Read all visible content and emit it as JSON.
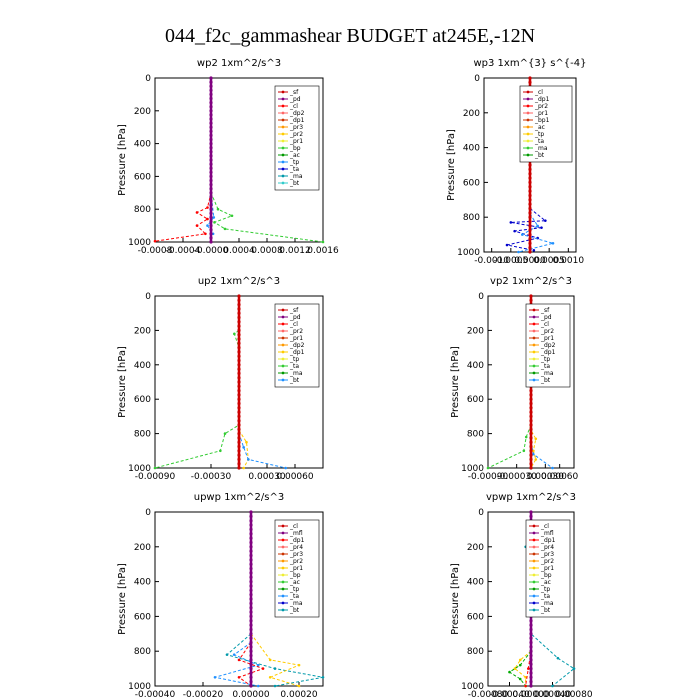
{
  "title": "044_f2c_gammashear  BUDGET at245E,-12N",
  "chart_data": [
    {
      "type": "line",
      "title": "wp2   1xm^2/s^3",
      "ylabel": "Pressure [hPa]",
      "xlim": [
        -0.0008,
        0.0016
      ],
      "ylim": [
        1000,
        0
      ],
      "xticks": [
        "-0.0008",
        "-0.0004",
        "-0.0000",
        "0.0004",
        "0.0008",
        "0.0012",
        "0.0016"
      ],
      "xtick_values": [
        -0.0008,
        -0.0004,
        0,
        0.0004,
        0.0008,
        0.0012,
        0.0016
      ],
      "yticks": [
        "0",
        "200",
        "400",
        "600",
        "800",
        "1000"
      ],
      "ytick_values": [
        0,
        200,
        400,
        600,
        800,
        1000
      ],
      "legend": [
        "_sf",
        "_pd",
        "_cl",
        "_dp2",
        "_dp1",
        "_pr3",
        "_pr2",
        "_pr1",
        "_bp",
        "_ac",
        "_tp",
        "_ta",
        "_ma",
        "_bt"
      ],
      "series": [
        {
          "name": "_dp1",
          "color": "#ff0000",
          "points": [
            [
              0,
              700
            ],
            [
              -5e-05,
              790
            ],
            [
              -0.0002,
              820
            ],
            [
              -5e-05,
              860
            ],
            [
              -0.0002,
              900
            ],
            [
              -8e-05,
              950
            ],
            [
              -0.0008,
              995
            ]
          ]
        },
        {
          "name": "_ac",
          "color": "#33cc33",
          "points": [
            [
              0,
              700
            ],
            [
              0.0001,
              800
            ],
            [
              0.0003,
              840
            ],
            [
              5e-05,
              880
            ],
            [
              0.0002,
              920
            ],
            [
              0.0016,
              1000
            ]
          ]
        },
        {
          "name": "_tp",
          "color": "#1e90ff",
          "points": [
            [
              0,
              700
            ],
            [
              4e-05,
              850
            ],
            [
              -5e-05,
              900
            ],
            [
              3e-05,
              950
            ]
          ]
        },
        {
          "name": "_pd",
          "color": "#800080",
          "points": [
            [
              0,
              0
            ],
            [
              0,
              1000
            ]
          ]
        }
      ]
    },
    {
      "type": "line",
      "title": "wp3   1xm^{3} s^{-4}",
      "ylabel": "Pressure [hPa]",
      "xlim": [
        -0.0012,
        0.0012
      ],
      "ylim": [
        1000,
        0
      ],
      "xticks": [
        "-0.0010",
        "-0.0005",
        "0.0000",
        "0.0005",
        "0.0010"
      ],
      "xtick_values": [
        -0.001,
        -0.0005,
        0,
        0.0005,
        0.001
      ],
      "yticks": [
        "0",
        "200",
        "400",
        "600",
        "800",
        "1000"
      ],
      "ytick_values": [
        0,
        200,
        400,
        600,
        800,
        1000
      ],
      "legend": [
        "_cl",
        "_dp1",
        "_pr2",
        "_pr1",
        "_bp1",
        "_ac",
        "_tp",
        "_ta",
        "_ma",
        "_bt"
      ],
      "series": [
        {
          "name": "_ta",
          "color": "#0000cc",
          "points": [
            [
              0,
              750
            ],
            [
              0.0004,
              820
            ],
            [
              -0.0005,
              830
            ],
            [
              0.0003,
              860
            ],
            [
              -0.0004,
              880
            ],
            [
              0.0002,
              920
            ],
            [
              -0.0006,
              960
            ],
            [
              0.0001,
              990
            ]
          ]
        },
        {
          "name": "_tp",
          "color": "#1e90ff",
          "points": [
            [
              0,
              780
            ],
            [
              0.0002,
              850
            ],
            [
              -0.0002,
              900
            ],
            [
              0.0006,
              950
            ],
            [
              -0.0003,
              1000
            ]
          ]
        },
        {
          "name": "_cl",
          "color": "#cc0000",
          "points": [
            [
              0,
              0
            ],
            [
              0,
              1000
            ]
          ]
        }
      ]
    },
    {
      "type": "line",
      "title": "up2   1xm^2/s^3",
      "ylabel": "Pressure [hPa]",
      "xlim": [
        -0.0009,
        0.0009
      ],
      "ylim": [
        1000,
        0
      ],
      "xticks": [
        "-0.00090",
        "-0.00030",
        "0.00030",
        "0.00060"
      ],
      "xtick_values": [
        -0.0009,
        -0.0003,
        0.0003,
        0.0006
      ],
      "yticks": [
        "0",
        "200",
        "400",
        "600",
        "800",
        "1000"
      ],
      "ytick_values": [
        0,
        200,
        400,
        600,
        800,
        1000
      ],
      "legend": [
        "_sf",
        "_pd",
        "_cl",
        "_pr2",
        "_pr1",
        "_dp2",
        "_dp1",
        "_tp",
        "_ta",
        "_ma",
        "_bt"
      ],
      "series": [
        {
          "name": "_dp1",
          "color": "#33cc33",
          "points": [
            [
              0,
              200
            ],
            [
              -5e-05,
              220
            ],
            [
              0,
              300
            ],
            [
              0,
              750
            ],
            [
              -0.00015,
              800
            ],
            [
              -0.0002,
              900
            ],
            [
              -0.0009,
              1000
            ]
          ]
        },
        {
          "name": "_pr1",
          "color": "#ffcc00",
          "points": [
            [
              0,
              780
            ],
            [
              8e-05,
              850
            ],
            [
              0.0001,
              950
            ],
            [
              5e-05,
              1000
            ]
          ]
        },
        {
          "name": "_tp",
          "color": "#1e90ff",
          "points": [
            [
              0,
              800
            ],
            [
              5e-05,
              880
            ],
            [
              0.0001,
              950
            ],
            [
              0.0005,
              1000
            ]
          ]
        },
        {
          "name": "_cl",
          "color": "#cc0000",
          "points": [
            [
              0,
              0
            ],
            [
              0,
              1000
            ]
          ]
        }
      ]
    },
    {
      "type": "line",
      "title": "vp2   1xm^2/s^3",
      "ylabel": "Pressure [hPa]",
      "xlim": [
        -0.0009,
        0.0009
      ],
      "ylim": [
        1000,
        0
      ],
      "xticks": [
        "-0.00090",
        "-0.00030",
        "0.00030",
        "0.00060"
      ],
      "xtick_values": [
        -0.0009,
        -0.0003,
        0.0003,
        0.0006
      ],
      "yticks": [
        "0",
        "200",
        "400",
        "600",
        "800",
        "1000"
      ],
      "ytick_values": [
        0,
        200,
        400,
        600,
        800,
        1000
      ],
      "legend": [
        "_sf",
        "_pd",
        "_cl",
        "_pr2",
        "_pr1",
        "_dp2",
        "_dp1",
        "_tp",
        "_ta",
        "_ma",
        "_bt"
      ],
      "series": [
        {
          "name": "_pr1",
          "color": "#ffcc00",
          "points": [
            [
              0,
              150
            ],
            [
              3e-05,
              200
            ],
            [
              0,
              300
            ],
            [
              0,
              780
            ],
            [
              0.0001,
              830
            ],
            [
              5e-05,
              900
            ],
            [
              0.0001,
              950
            ],
            [
              0,
              1000
            ]
          ]
        },
        {
          "name": "_dp1",
          "color": "#33cc33",
          "points": [
            [
              0,
              750
            ],
            [
              -0.0001,
              820
            ],
            [
              -0.00015,
              900
            ],
            [
              -0.0009,
              1000
            ]
          ]
        },
        {
          "name": "_tp",
          "color": "#1e90ff",
          "points": [
            [
              0,
              850
            ],
            [
              5e-05,
              920
            ],
            [
              0.00045,
              1000
            ]
          ]
        },
        {
          "name": "_cl",
          "color": "#cc0000",
          "points": [
            [
              0,
              0
            ],
            [
              0,
              1000
            ]
          ]
        }
      ]
    },
    {
      "type": "line",
      "title": "upwp   1xm^2/s^3",
      "ylabel": "Pressure [hPa]",
      "xlim": [
        -0.0004,
        0.0003
      ],
      "ylim": [
        1000,
        0
      ],
      "xticks": [
        "-0.00040",
        "-0.00020",
        "0.00000",
        "0.00020"
      ],
      "xtick_values": [
        -0.0004,
        -0.0002,
        0,
        0.0002
      ],
      "yticks": [
        "0",
        "200",
        "400",
        "600",
        "800",
        "1000"
      ],
      "ytick_values": [
        0,
        200,
        400,
        600,
        800,
        1000
      ],
      "legend": [
        "_cl",
        "_mfl",
        "_dp1",
        "_pr4",
        "_pr3",
        "_pr2",
        "_pr1",
        "_bp",
        "_ac",
        "_tp",
        "_ta",
        "_ma",
        "_bt"
      ],
      "series": [
        {
          "name": "_tp",
          "color": "#1e90ff",
          "points": [
            [
              0,
              750
            ],
            [
              -7e-05,
              820
            ],
            [
              3e-05,
              880
            ],
            [
              -0.00015,
              950
            ],
            [
              3e-05,
              1000
            ]
          ]
        },
        {
          "name": "_ac",
          "color": "#0099aa",
          "points": [
            [
              0,
              700
            ],
            [
              -0.0001,
              820
            ],
            [
              0.0001,
              900
            ],
            [
              0.0003,
              950
            ],
            [
              0.0001,
              1000
            ]
          ]
        },
        {
          "name": "_pr1",
          "color": "#ffcc00",
          "points": [
            [
              0,
              700
            ],
            [
              8e-05,
              850
            ],
            [
              0.0002,
              880
            ],
            [
              8e-05,
              950
            ],
            [
              0.0002,
              1000
            ]
          ]
        },
        {
          "name": "_pr3",
          "color": "#ff0000",
          "points": [
            [
              0,
              750
            ],
            [
              -5e-05,
              850
            ],
            [
              5e-05,
              900
            ],
            [
              -5e-05,
              950
            ],
            [
              0,
              1000
            ]
          ]
        },
        {
          "name": "_mfl",
          "color": "#800080",
          "points": [
            [
              0,
              0
            ],
            [
              0,
              1000
            ]
          ]
        }
      ]
    },
    {
      "type": "line",
      "title": "vpwp   1xm^2/s^3",
      "ylabel": "Pressure [hPa]",
      "xlim": [
        -0.0008,
        0.0008
      ],
      "ylim": [
        1000,
        0
      ],
      "xticks": [
        "-0.00080",
        "-0.00040",
        "0.00000",
        "0.00040",
        "0.00080"
      ],
      "xtick_values": [
        -0.0008,
        -0.0004,
        0,
        0.0004,
        0.0008
      ],
      "yticks": [
        "0",
        "200",
        "400",
        "600",
        "800",
        "1000"
      ],
      "ytick_values": [
        0,
        200,
        400,
        600,
        800,
        1000
      ],
      "legend": [
        "_cl",
        "_mfl",
        "_dp1",
        "_pr4",
        "_pr3",
        "_pr2",
        "_pr1",
        "_bp",
        "_ac",
        "_tp",
        "_ta",
        "_ma",
        "_bt"
      ],
      "series": [
        {
          "name": "_ac",
          "color": "#0099aa",
          "points": [
            [
              0,
              150
            ],
            [
              -0.0001,
              200
            ],
            [
              0,
              250
            ],
            [
              0,
              700
            ],
            [
              0.0005,
              840
            ],
            [
              0.0008,
              900
            ],
            [
              0.0004,
              1000
            ]
          ]
        },
        {
          "name": "_pr1",
          "color": "#ffcc00",
          "points": [
            [
              0,
              150
            ],
            [
              8e-05,
              200
            ],
            [
              0,
              250
            ],
            [
              0,
              800
            ],
            [
              -0.0002,
              850
            ],
            [
              -0.0003,
              900
            ],
            [
              -0.0001,
              950
            ],
            [
              -0.0001,
              1000
            ]
          ]
        },
        {
          "name": "_bp",
          "color": "#00aa00",
          "points": [
            [
              0,
              800
            ],
            [
              -0.0002,
              880
            ],
            [
              -0.0004,
              920
            ],
            [
              -0.0002,
              960
            ],
            [
              -0.0001,
              1000
            ]
          ]
        },
        {
          "name": "_pr3",
          "color": "#ff0000",
          "points": [
            [
              0,
              800
            ],
            [
              -5e-05,
              900
            ],
            [
              -0.0001,
              1000
            ]
          ]
        },
        {
          "name": "_mfl",
          "color": "#800080",
          "points": [
            [
              0,
              0
            ],
            [
              0,
              1000
            ]
          ]
        }
      ]
    }
  ]
}
